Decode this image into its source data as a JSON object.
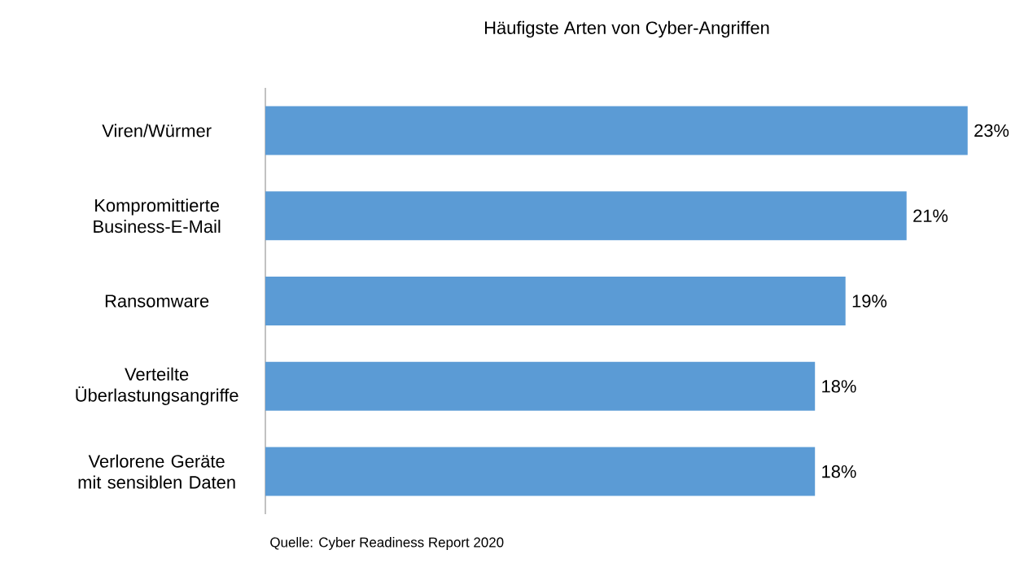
{
  "chart_data": {
    "type": "bar",
    "orientation": "horizontal",
    "title": "Häufigste Arten von Cyber-Angriffen",
    "categories": [
      "Viren/Würmer",
      "Kompromittierte Business-E-Mail",
      "Ransomware",
      "Verteilte Überlastungsangriffe",
      "Verlorene Geräte mit sensiblen Daten"
    ],
    "values": [
      23,
      21,
      19,
      18,
      18
    ],
    "value_labels": [
      "23%",
      "21%",
      "19%",
      "18%",
      "18%"
    ],
    "color": "#5b9bd5",
    "annotations": [
      "Quelle: Cyber Readiness Report 2020"
    ]
  }
}
